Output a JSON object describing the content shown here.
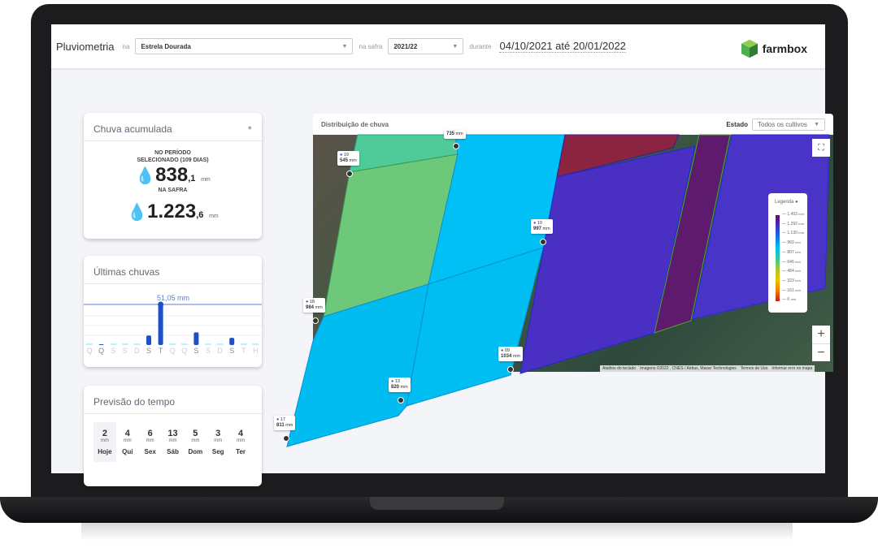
{
  "header": {
    "title": "Pluviometria",
    "na_label": "na",
    "farm": "Estrela Dourada",
    "safra_label": "na safra",
    "safra": "2021/22",
    "durante_label": "durante",
    "period": "04/10/2021 até 20/01/2022",
    "brand": "farmbox"
  },
  "accumulated": {
    "title": "Chuva acumulada",
    "period_label_1": "NO PERÍODO",
    "period_label_2": "SELECIONADO (109 DIAS)",
    "period_int": "838",
    "period_dec": ",1",
    "unit": "mm",
    "safra_label": "NA SAFRA",
    "safra_int": "1.223",
    "safra_dec": ",6"
  },
  "recent": {
    "title": "Últimas chuvas",
    "max_label": "51,05 mm",
    "days": [
      "Q",
      "Q",
      "S",
      "S",
      "D",
      "S",
      "T",
      "Q",
      "Q",
      "S",
      "S",
      "D",
      "S",
      "T",
      "H"
    ],
    "values_mm": [
      0,
      1,
      0,
      0,
      0,
      12,
      51.05,
      0,
      0,
      16,
      0,
      0,
      9,
      0,
      0
    ]
  },
  "forecast": {
    "title": "Previsão do tempo",
    "unit": "mm",
    "days": [
      {
        "v": "2",
        "d": "Hoje"
      },
      {
        "v": "4",
        "d": "Qui"
      },
      {
        "v": "6",
        "d": "Sex"
      },
      {
        "v": "13",
        "d": "Sáb"
      },
      {
        "v": "5",
        "d": "Dom"
      },
      {
        "v": "3",
        "d": "Seg"
      },
      {
        "v": "4",
        "d": "Ter"
      }
    ]
  },
  "map": {
    "title": "Distribuição de chuva",
    "estado_label": "Estado",
    "estado_value": "Todos os cultivos",
    "markers": [
      {
        "id": "",
        "v": "735"
      },
      {
        "id": "19",
        "v": "545"
      },
      {
        "id": "10",
        "v": "997"
      },
      {
        "id": "18",
        "v": "984"
      },
      {
        "id": "09",
        "v": "1034"
      },
      {
        "id": "13",
        "v": "820"
      },
      {
        "id": "17",
        "v": "811"
      }
    ],
    "marker_unit": "mm",
    "legend": {
      "title": "Legenda",
      "ticks": [
        "1.453",
        "1.292",
        "1.130",
        "969",
        "807",
        "646",
        "484",
        "323",
        "161",
        "0"
      ],
      "unit": "mm"
    },
    "attribution": [
      "Atalhos do teclado",
      "Imagens ©2022 , CNES / Airbus, Maxar Technologies",
      "Termos de Uso",
      "Informar erro no mapa"
    ],
    "zoom_in": "+",
    "zoom_out": "−"
  }
}
